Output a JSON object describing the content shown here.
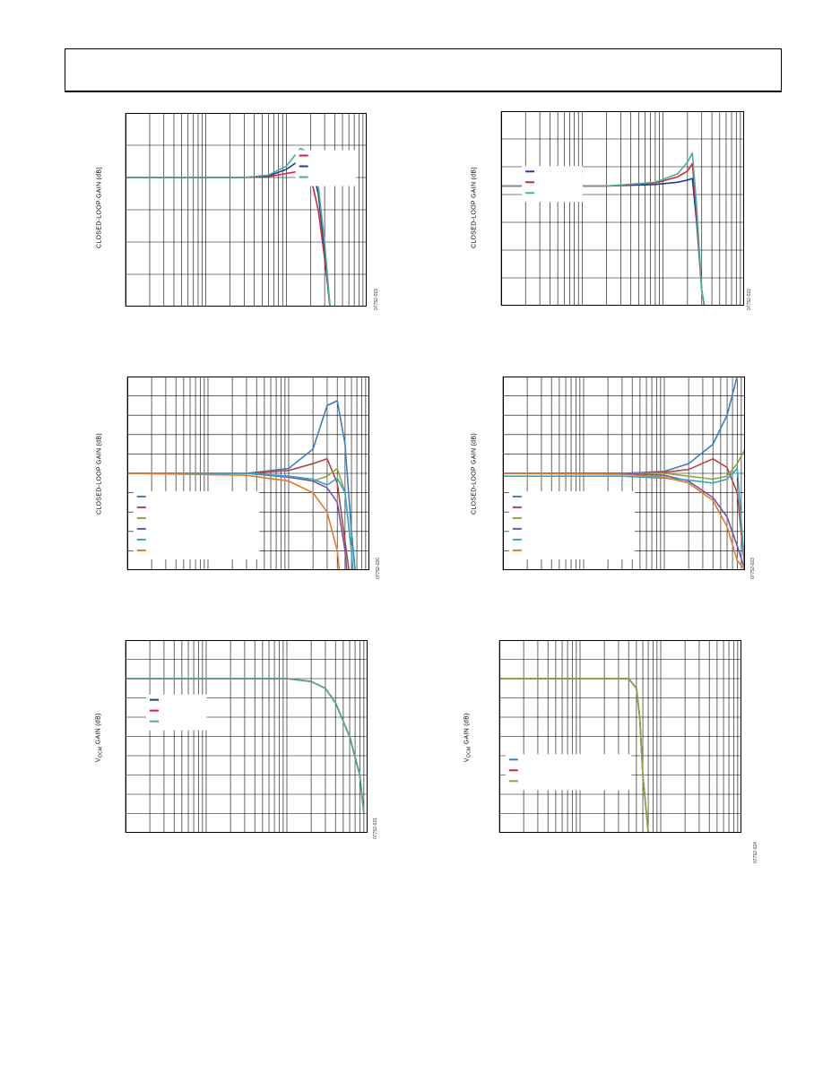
{
  "page": {
    "header": ""
  },
  "charts": [
    {
      "id": "c1",
      "ylabel": "CLOSED-LOOP GAIN (dB)",
      "figure_id": "07752-019",
      "colors": {
        "frame": "#000000"
      }
    },
    {
      "id": "c2",
      "ylabel": "CLOSED-LOOP GAIN (dB)",
      "figure_id": "07752-022"
    },
    {
      "id": "c3",
      "ylabel": "CLOSED-LOOP GAIN (dB)",
      "figure_id": "07752-020"
    },
    {
      "id": "c4",
      "ylabel": "CLOSED-LOOP GAIN (dB)",
      "figure_id": "07752-023"
    },
    {
      "id": "c5",
      "ylabel_main": "V",
      "ylabel_sub": "OCM",
      "ylabel_rest": " GAIN (dB)",
      "figure_id": "07752-021"
    },
    {
      "id": "c6",
      "ylabel_main": "V",
      "ylabel_sub": "OCM",
      "ylabel_rest": " GAIN (dB)",
      "figure_id": "07752-024"
    }
  ],
  "chart_data": [
    {
      "type": "line",
      "xscale": "log",
      "xlim": [
        1,
        1000
      ],
      "ylim": [
        -18,
        6
      ],
      "grid": true,
      "yticks": [
        6,
        2,
        -2,
        -6,
        -10,
        -14,
        -18
      ],
      "legend_location": "top-right",
      "series": [
        {
          "color": "#d6243c",
          "x": [
            1,
            30,
            60,
            100,
            150,
            200,
            250,
            300,
            350,
            400
          ],
          "y": [
            -2,
            -2,
            -1.9,
            -1.5,
            -1.2,
            -1.8,
            -6,
            -12,
            -18,
            -24
          ]
        },
        {
          "color": "#1f3f8f",
          "x": [
            1,
            30,
            60,
            100,
            150,
            200,
            250,
            300,
            350,
            400
          ],
          "y": [
            -2,
            -2,
            -1.8,
            -1.0,
            0.2,
            0.0,
            -4,
            -11,
            -18,
            -24
          ]
        },
        {
          "color": "#4cae9a",
          "x": [
            1,
            30,
            60,
            100,
            150,
            200,
            250,
            300,
            350,
            400
          ],
          "y": [
            -2,
            -2,
            -1.7,
            -0.6,
            1.6,
            1.0,
            -3,
            -10,
            -18,
            -24
          ]
        }
      ]
    },
    {
      "type": "line",
      "xscale": "log",
      "xlim": [
        1,
        1000
      ],
      "ylim": [
        -18,
        8
      ],
      "grid": true,
      "legend_location": "top-left",
      "series": [
        {
          "color": "#1f3f8f",
          "x": [
            1,
            20,
            80,
            150,
            200,
            230,
            260,
            300,
            400
          ],
          "y": [
            -2,
            -2,
            -1.8,
            -1.5,
            -1.2,
            -1.0,
            -7,
            -16,
            -24
          ]
        },
        {
          "color": "#d6243c",
          "x": [
            1,
            20,
            80,
            150,
            200,
            230,
            260,
            300,
            400
          ],
          "y": [
            -2,
            -2,
            -1.6,
            -0.8,
            0.0,
            1.0,
            -6,
            -16,
            -24
          ]
        },
        {
          "color": "#4cae9a",
          "x": [
            1,
            20,
            80,
            150,
            200,
            230,
            260,
            300,
            400
          ],
          "y": [
            -2,
            -2,
            -1.5,
            -0.4,
            1.2,
            2.4,
            -5,
            -16,
            -24
          ]
        }
      ]
    },
    {
      "type": "line",
      "xscale": "log",
      "xlim": [
        1,
        1000
      ],
      "ylim": [
        -10,
        10
      ],
      "grid": true,
      "legend_location": "bottom-left",
      "series": [
        {
          "color": "#3d7fc0",
          "x": [
            1,
            30,
            100,
            200,
            300,
            400,
            500,
            600,
            700
          ],
          "y": [
            0,
            0,
            0.5,
            2.5,
            7.0,
            7.5,
            3.0,
            -6,
            -12
          ]
        },
        {
          "color": "#b5453f",
          "x": [
            1,
            30,
            100,
            200,
            300,
            400,
            500,
            600
          ],
          "y": [
            0,
            0,
            0.3,
            1.0,
            1.5,
            -1.0,
            -7,
            -12
          ]
        },
        {
          "color": "#8fa63c",
          "x": [
            1,
            30,
            100,
            200,
            300,
            400,
            500,
            600,
            650
          ],
          "y": [
            0,
            0,
            -0.3,
            -0.8,
            -0.3,
            0.5,
            -2,
            -8,
            -12
          ]
        },
        {
          "color": "#7257a6",
          "x": [
            1,
            30,
            100,
            200,
            300,
            400,
            500,
            550
          ],
          "y": [
            0,
            0,
            -0.4,
            -0.8,
            -1.5,
            -3,
            -8,
            -12
          ]
        },
        {
          "color": "#35a7c4",
          "x": [
            1,
            30,
            100,
            200,
            300,
            400,
            500,
            600,
            650
          ],
          "y": [
            0,
            0,
            -0.3,
            -0.6,
            -1.2,
            -0.5,
            -2,
            -8,
            -12
          ]
        },
        {
          "color": "#e57a2c",
          "x": [
            1,
            30,
            100,
            200,
            300,
            400,
            450
          ],
          "y": [
            0,
            -0.2,
            -0.8,
            -2,
            -4,
            -8,
            -12
          ]
        }
      ]
    },
    {
      "type": "line",
      "xscale": "log",
      "xlim": [
        1,
        1000
      ],
      "ylim": [
        -10,
        10
      ],
      "grid": true,
      "legend_location": "bottom-left",
      "series": [
        {
          "color": "#3d7fc0",
          "x": [
            1,
            30,
            100,
            200,
            400,
            600,
            800,
            1000
          ],
          "y": [
            0,
            0,
            0.2,
            1.0,
            3.0,
            6.0,
            10,
            12
          ]
        },
        {
          "color": "#b5453f",
          "x": [
            1,
            30,
            100,
            200,
            400,
            600,
            800,
            1000
          ],
          "y": [
            0,
            0,
            0.1,
            0.4,
            1.5,
            0.6,
            -2,
            -10
          ]
        },
        {
          "color": "#8fa63c",
          "x": [
            1,
            30,
            100,
            200,
            400,
            600,
            800,
            1000
          ],
          "y": [
            0,
            0,
            0,
            -0.3,
            -0.6,
            -0.3,
            1.0,
            2.5
          ]
        },
        {
          "color": "#7257a6",
          "x": [
            1,
            30,
            100,
            200,
            400,
            600,
            800,
            1000
          ],
          "y": [
            0,
            0,
            -0.2,
            -0.8,
            -2.5,
            -4.5,
            -7.5,
            -10
          ]
        },
        {
          "color": "#35a7c4",
          "x": [
            1,
            30,
            100,
            200,
            400,
            600,
            800,
            1000
          ],
          "y": [
            -0.3,
            -0.3,
            -0.5,
            -0.7,
            -1.0,
            -0.6,
            0.5,
            -10
          ]
        },
        {
          "color": "#e57a2c",
          "x": [
            1,
            30,
            100,
            200,
            400,
            600,
            800,
            1000
          ],
          "y": [
            0,
            -0.1,
            -0.4,
            -1.0,
            -2.8,
            -5.5,
            -9,
            -10
          ]
        }
      ]
    },
    {
      "type": "line",
      "xscale": "log",
      "xlim": [
        1,
        1000
      ],
      "ylim": [
        -18,
        2
      ],
      "grid": true,
      "legend_location": "top-left",
      "series": [
        {
          "color": "#1f3f8f",
          "x": [
            1,
            30,
            100,
            200,
            300,
            400,
            600,
            800,
            900
          ],
          "y": [
            -2,
            -2,
            -2,
            -2.3,
            -3,
            -4.5,
            -8,
            -12,
            -16
          ]
        },
        {
          "color": "#d6243c",
          "x": [
            1,
            30,
            100,
            200,
            300,
            400,
            600,
            800,
            900
          ],
          "y": [
            -2,
            -2,
            -2,
            -2.3,
            -3,
            -4.5,
            -8,
            -12,
            -16
          ]
        },
        {
          "color": "#4cae9a",
          "x": [
            1,
            30,
            100,
            200,
            300,
            400,
            600,
            800,
            900
          ],
          "y": [
            -2,
            -2,
            -2,
            -2.3,
            -3,
            -4.5,
            -8,
            -12,
            -16
          ]
        }
      ]
    },
    {
      "type": "line",
      "xscale": "log",
      "xlim": [
        1,
        1000
      ],
      "ylim": [
        -18,
        2
      ],
      "grid": true,
      "legend_location": "bottom-left",
      "series": [
        {
          "color": "#3d7fc0",
          "x": [
            1,
            20,
            40,
            50,
            55,
            60,
            70
          ],
          "y": [
            -2,
            -2,
            -2,
            -3,
            -6,
            -12,
            -18
          ]
        },
        {
          "color": "#d6243c",
          "x": [
            1,
            20,
            40,
            50,
            55,
            60,
            70
          ],
          "y": [
            -2,
            -2,
            -2,
            -3,
            -6,
            -12,
            -18
          ]
        },
        {
          "color": "#8fa63c",
          "x": [
            1,
            20,
            40,
            50,
            55,
            60,
            70
          ],
          "y": [
            -2,
            -2,
            -2,
            -3,
            -6,
            -12,
            -18
          ]
        }
      ]
    }
  ]
}
